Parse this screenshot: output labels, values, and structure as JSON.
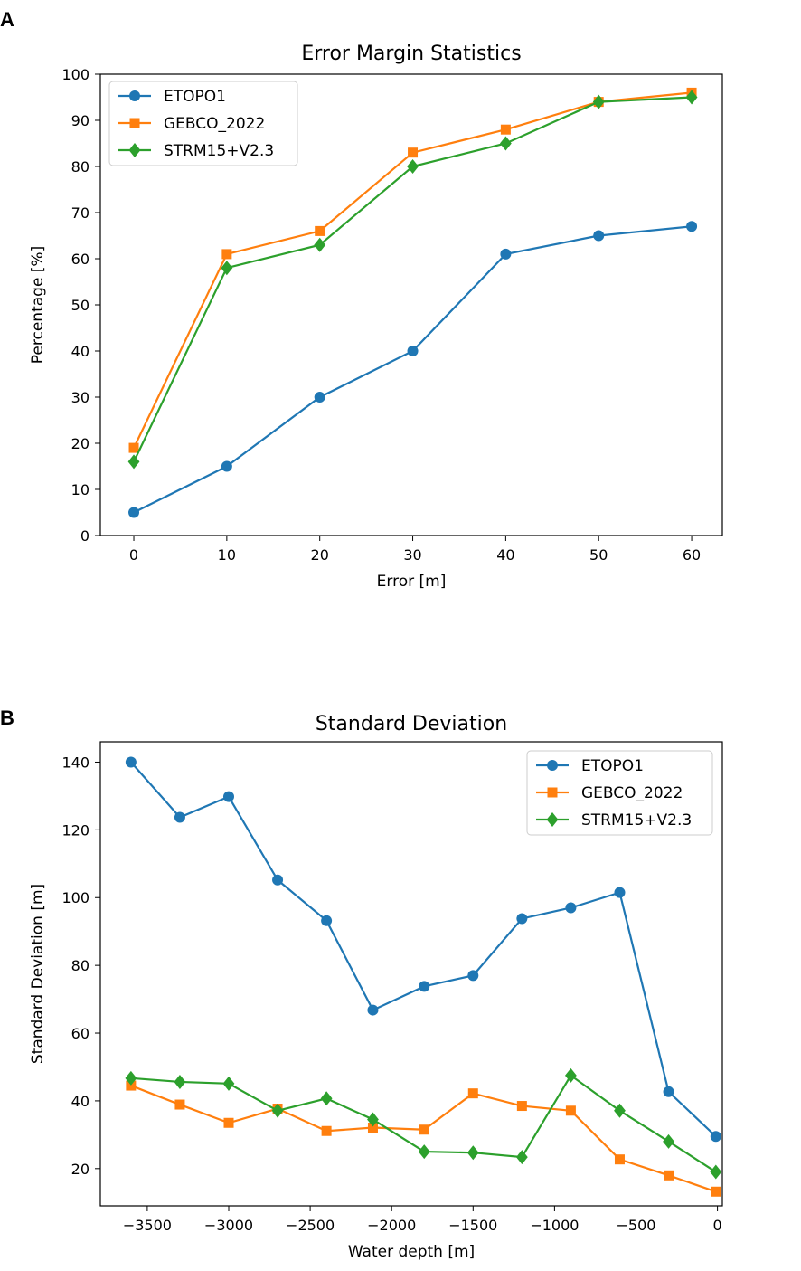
{
  "chart_data": [
    {
      "panel": "A",
      "type": "line",
      "title": "Error Margin Statistics",
      "xlabel": "Error [m]",
      "ylabel": "Percentage [%]",
      "x": [
        0,
        10,
        20,
        30,
        40,
        50,
        60
      ],
      "xlim": [
        -3.6,
        63.3
      ],
      "ylim": [
        0,
        100
      ],
      "xticks": [
        0,
        10,
        20,
        30,
        40,
        50,
        60
      ],
      "xtick_labels": [
        "0",
        "10",
        "20",
        "30",
        "40",
        "50",
        "60"
      ],
      "yticks": [
        0,
        10,
        20,
        30,
        40,
        50,
        60,
        70,
        80,
        90,
        100
      ],
      "ytick_labels": [
        "0",
        "10",
        "20",
        "30",
        "40",
        "50",
        "60",
        "70",
        "80",
        "90",
        "100"
      ],
      "legend_loc": "upper-left",
      "grid": false,
      "series": [
        {
          "name": "ETOPO1",
          "color": "#1f77b4",
          "marker": "circle",
          "values": [
            5,
            15,
            30,
            40,
            61,
            65,
            67
          ]
        },
        {
          "name": "GEBCO_2022",
          "color": "#ff7f0e",
          "marker": "square",
          "values": [
            19,
            61,
            66,
            83,
            88,
            94,
            96
          ]
        },
        {
          "name": "STRM15+V2.3",
          "color": "#2ca02c",
          "marker": "diamond",
          "values": [
            16,
            58,
            63,
            80,
            85,
            94,
            95
          ]
        }
      ]
    },
    {
      "panel": "B",
      "type": "line",
      "title": "Standard Deviation",
      "xlabel": "Water depth [m]",
      "ylabel": "Standard Deviation [m]",
      "x": [
        -3600,
        -3300,
        -3000,
        -2700,
        -2400,
        -2115,
        -1800,
        -1500,
        -1200,
        -900,
        -600,
        -300,
        -10
      ],
      "xlim": [
        -3788,
        30
      ],
      "ylim": [
        9,
        146
      ],
      "xticks": [
        -3500,
        -3000,
        -2500,
        -2000,
        -1500,
        -1000,
        -500,
        0
      ],
      "xtick_labels": [
        "−3500",
        "−3000",
        "−2500",
        "−2000",
        "−1500",
        "−1000",
        "−500",
        "0"
      ],
      "yticks": [
        20,
        40,
        60,
        80,
        100,
        120,
        140
      ],
      "ytick_labels": [
        "20",
        "40",
        "60",
        "80",
        "100",
        "120",
        "140"
      ],
      "legend_loc": "upper-right",
      "grid": false,
      "series": [
        {
          "name": "ETOPO1",
          "color": "#1f77b4",
          "marker": "circle",
          "values": [
            140,
            123.7,
            129.8,
            105.2,
            93.2,
            66.8,
            73.8,
            77,
            93.8,
            97,
            101.5,
            42.7,
            29.5
          ]
        },
        {
          "name": "GEBCO_2022",
          "color": "#ff7f0e",
          "marker": "square",
          "values": [
            44.5,
            38.9,
            33.5,
            37.7,
            31.1,
            32.1,
            31.5,
            42.2,
            38.5,
            37.1,
            22.7,
            18,
            13.2
          ]
        },
        {
          "name": "STRM15+V2.3",
          "color": "#2ca02c",
          "marker": "diamond",
          "values": [
            46.7,
            45.6,
            45.1,
            37.1,
            40.7,
            34.5,
            25,
            24.7,
            23.4,
            47.5,
            37.1,
            28,
            19
          ]
        }
      ]
    }
  ]
}
